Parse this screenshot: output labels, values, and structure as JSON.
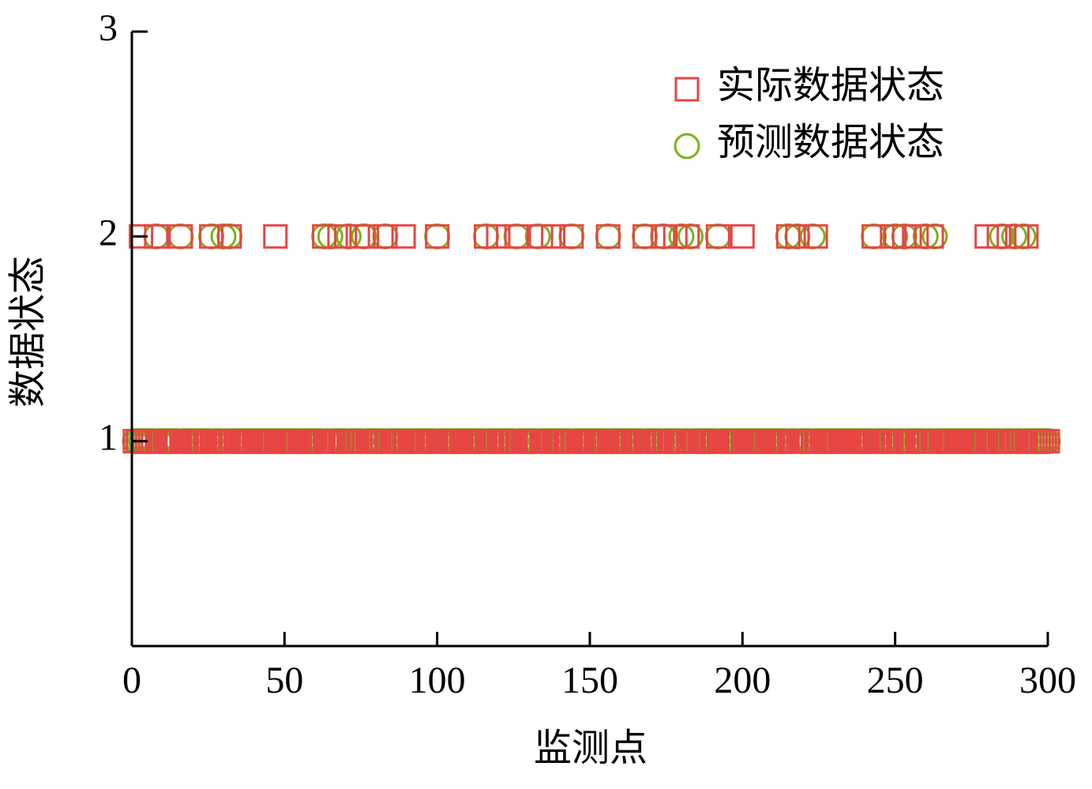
{
  "chart_data": {
    "type": "scatter",
    "xlabel": "监测点",
    "ylabel": "数据状态",
    "xlim": [
      0,
      300
    ],
    "xticks": [
      0,
      50,
      100,
      150,
      200,
      250,
      300
    ],
    "ylim": [
      0,
      3
    ],
    "yticks": [
      1,
      2,
      3
    ],
    "legend": "upper right",
    "x": [
      1,
      2,
      3,
      4,
      5,
      6,
      7,
      8,
      9,
      10,
      11,
      12,
      13,
      14,
      15,
      16,
      17,
      18,
      19,
      20,
      21,
      22,
      23,
      24,
      25,
      26,
      27,
      28,
      29,
      30,
      31,
      32,
      33,
      34,
      35,
      36,
      37,
      38,
      39,
      40,
      41,
      42,
      43,
      44,
      45,
      46,
      47,
      48,
      49,
      50,
      51,
      52,
      53,
      54,
      55,
      56,
      57,
      58,
      59,
      60,
      61,
      62,
      63,
      64,
      65,
      66,
      67,
      68,
      69,
      70,
      71,
      72,
      73,
      74,
      75,
      76,
      77,
      78,
      79,
      80,
      81,
      82,
      83,
      84,
      85,
      86,
      87,
      88,
      89,
      90,
      91,
      92,
      93,
      94,
      95,
      96,
      97,
      98,
      99,
      100,
      101,
      102,
      103,
      104,
      105,
      106,
      107,
      108,
      109,
      110,
      111,
      112,
      113,
      114,
      115,
      116,
      117,
      118,
      119,
      120,
      121,
      122,
      123,
      124,
      125,
      126,
      127,
      128,
      129,
      130,
      131,
      132,
      133,
      134,
      135,
      136,
      137,
      138,
      139,
      140,
      141,
      142,
      143,
      144,
      145,
      146,
      147,
      148,
      149,
      150,
      151,
      152,
      153,
      154,
      155,
      156,
      157,
      158,
      159,
      160,
      161,
      162,
      163,
      164,
      165,
      166,
      167,
      168,
      169,
      170,
      171,
      172,
      173,
      174,
      175,
      176,
      177,
      178,
      179,
      180,
      181,
      182,
      183,
      184,
      185,
      186,
      187,
      188,
      189,
      190,
      191,
      192,
      193,
      194,
      195,
      196,
      197,
      198,
      199,
      200,
      201,
      202,
      203,
      204,
      205,
      206,
      207,
      208,
      209,
      210,
      211,
      212,
      213,
      214,
      215,
      216,
      217,
      218,
      219,
      220,
      221,
      222,
      223,
      224,
      225,
      226,
      227,
      228,
      229,
      230,
      231,
      232,
      233,
      234,
      235,
      236,
      237,
      238,
      239,
      240,
      241,
      242,
      243,
      244,
      245,
      246,
      247,
      248,
      249,
      250,
      251,
      252,
      253,
      254,
      255,
      256,
      257,
      258,
      259,
      260,
      261,
      262,
      263,
      264,
      265,
      266,
      267,
      268,
      269,
      270,
      271,
      272,
      273,
      274,
      275,
      276,
      277,
      278,
      279,
      280,
      281,
      282,
      283,
      284,
      285,
      286,
      287,
      288,
      289,
      290,
      291,
      292,
      293,
      294,
      295,
      296,
      297,
      298,
      299,
      300
    ],
    "series": [
      {
        "name": "实际数据状态",
        "color": "#e84545",
        "marker": "square",
        "values": [
          1,
          1,
          2,
          1,
          1,
          1,
          1,
          2,
          1,
          1,
          1,
          1,
          1,
          1,
          1,
          2,
          1,
          1,
          1,
          1,
          1,
          1,
          1,
          1,
          1,
          2,
          1,
          1,
          1,
          1,
          1,
          2,
          1,
          1,
          1,
          1,
          1,
          1,
          1,
          1,
          1,
          1,
          1,
          1,
          1,
          1,
          2,
          1,
          1,
          1,
          1,
          1,
          1,
          1,
          1,
          1,
          1,
          1,
          1,
          1,
          1,
          1,
          2,
          1,
          1,
          1,
          1,
          2,
          1,
          1,
          1,
          1,
          1,
          2,
          1,
          1,
          2,
          1,
          1,
          1,
          1,
          1,
          2,
          1,
          1,
          1,
          1,
          1,
          2,
          1,
          1,
          1,
          1,
          1,
          1,
          1,
          1,
          1,
          1,
          2,
          1,
          1,
          1,
          1,
          1,
          1,
          1,
          1,
          1,
          1,
          1,
          1,
          1,
          1,
          1,
          2,
          1,
          1,
          1,
          2,
          1,
          1,
          1,
          1,
          1,
          2,
          1,
          1,
          1,
          1,
          1,
          1,
          1,
          2,
          1,
          1,
          1,
          2,
          1,
          1,
          1,
          1,
          1,
          2,
          1,
          1,
          1,
          1,
          1,
          1,
          1,
          1,
          1,
          1,
          1,
          2,
          1,
          1,
          1,
          1,
          1,
          1,
          1,
          1,
          1,
          1,
          1,
          2,
          1,
          1,
          1,
          1,
          1,
          2,
          1,
          1,
          1,
          2,
          1,
          1,
          1,
          2,
          1,
          1,
          1,
          1,
          1,
          1,
          1,
          1,
          1,
          2,
          1,
          1,
          1,
          1,
          1,
          1,
          1,
          2,
          1,
          1,
          1,
          1,
          1,
          1,
          1,
          1,
          1,
          1,
          1,
          1,
          1,
          1,
          2,
          1,
          1,
          2,
          1,
          1,
          1,
          1,
          1,
          2,
          1,
          1,
          1,
          1,
          1,
          1,
          1,
          1,
          1,
          1,
          1,
          1,
          1,
          1,
          1,
          1,
          1,
          1,
          2,
          1,
          1,
          1,
          1,
          1,
          2,
          1,
          1,
          1,
          2,
          1,
          1,
          1,
          2,
          1,
          1,
          1,
          1,
          2,
          1,
          1,
          1,
          1,
          1,
          1,
          1,
          1,
          1,
          1,
          1,
          1,
          1,
          1,
          1,
          1,
          1,
          2,
          1,
          1,
          1,
          2,
          1,
          1,
          1,
          1,
          1,
          2,
          1,
          1,
          2,
          1,
          1,
          1,
          1,
          1,
          1,
          1
        ]
      },
      {
        "name": "预测数据状态",
        "color": "#7ab317",
        "marker": "circle",
        "values": [
          1,
          1,
          1,
          1,
          1,
          1,
          1,
          2,
          1,
          1,
          1,
          1,
          1,
          1,
          1,
          2,
          1,
          1,
          1,
          1,
          1,
          1,
          1,
          1,
          1,
          2,
          1,
          1,
          1,
          2,
          1,
          2,
          1,
          1,
          1,
          1,
          1,
          1,
          1,
          1,
          1,
          1,
          1,
          1,
          1,
          1,
          1,
          1,
          1,
          1,
          1,
          1,
          1,
          1,
          1,
          1,
          1,
          1,
          1,
          1,
          1,
          1,
          2,
          1,
          2,
          1,
          1,
          1,
          1,
          1,
          2,
          1,
          1,
          1,
          1,
          2,
          1,
          1,
          1,
          1,
          1,
          1,
          2,
          1,
          1,
          1,
          1,
          1,
          1,
          1,
          1,
          1,
          1,
          1,
          1,
          1,
          1,
          1,
          1,
          2,
          1,
          1,
          1,
          1,
          1,
          1,
          1,
          1,
          1,
          1,
          1,
          1,
          1,
          1,
          1,
          2,
          1,
          1,
          1,
          1,
          1,
          1,
          1,
          1,
          1,
          2,
          1,
          1,
          1,
          1,
          1,
          1,
          2,
          1,
          1,
          1,
          1,
          1,
          1,
          1,
          1,
          1,
          1,
          2,
          1,
          1,
          1,
          1,
          1,
          1,
          1,
          1,
          1,
          1,
          1,
          2,
          1,
          1,
          1,
          1,
          1,
          1,
          1,
          1,
          1,
          1,
          1,
          2,
          1,
          1,
          1,
          1,
          1,
          2,
          1,
          1,
          1,
          1,
          1,
          2,
          1,
          1,
          2,
          1,
          1,
          1,
          1,
          1,
          1,
          1,
          1,
          2,
          1,
          1,
          1,
          1,
          1,
          1,
          1,
          1,
          1,
          1,
          1,
          1,
          1,
          1,
          1,
          1,
          1,
          1,
          1,
          1,
          1,
          1,
          2,
          1,
          1,
          2,
          1,
          1,
          1,
          1,
          2,
          1,
          1,
          1,
          1,
          1,
          1,
          1,
          1,
          1,
          1,
          1,
          1,
          1,
          1,
          1,
          1,
          1,
          1,
          1,
          2,
          1,
          1,
          1,
          1,
          1,
          1,
          2,
          1,
          1,
          2,
          1,
          1,
          1,
          1,
          1,
          1,
          2,
          1,
          1,
          2,
          1,
          1,
          1,
          1,
          1,
          1,
          1,
          1,
          1,
          1,
          1,
          1,
          1,
          1,
          1,
          1,
          1,
          1,
          1,
          1,
          1,
          2,
          1,
          1,
          1,
          2,
          1,
          1,
          2,
          1,
          1,
          1,
          1,
          1,
          1,
          1,
          1
        ]
      }
    ]
  }
}
